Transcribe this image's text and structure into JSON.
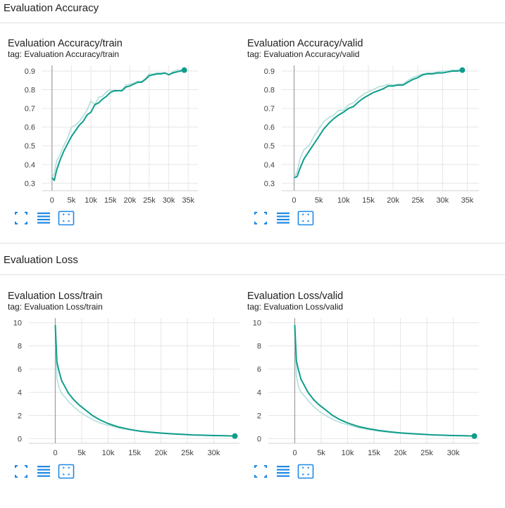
{
  "sections": [
    {
      "title": "Evaluation Accuracy",
      "cards": [
        {
          "title": "Evaluation Accuracy/train",
          "tag": "tag: Evaluation Accuracy/train",
          "chart_data": {
            "type": "line",
            "title": "Evaluation Accuracy/train",
            "xlabel": "",
            "ylabel": "",
            "xlim": [
              -2500,
              37500
            ],
            "ylim": [
              0.26,
              0.93
            ],
            "xticks": [
              0,
              5000,
              10000,
              15000,
              20000,
              25000,
              30000,
              35000
            ],
            "xtick_labels": [
              "0",
              "5k",
              "10k",
              "15k",
              "20k",
              "25k",
              "30k",
              "35k"
            ],
            "yticks": [
              0.3,
              0.4,
              0.5,
              0.6,
              0.7,
              0.8,
              0.9
            ],
            "ytick_labels": [
              "0.3",
              "0.4",
              "0.5",
              "0.6",
              "0.7",
              "0.8",
              "0.9"
            ],
            "grid": true,
            "series": [
              {
                "role": "smoothed",
                "color": "#0f9d8a",
                "x": [
                  0,
                  600,
                  1200,
                  2000,
                  3000,
                  4000,
                  5000,
                  6000,
                  7000,
                  8000,
                  9000,
                  10000,
                  11000,
                  12000,
                  13000,
                  14000,
                  15000,
                  16000,
                  17000,
                  18000,
                  19000,
                  20000,
                  21000,
                  22000,
                  23000,
                  24000,
                  25000,
                  26000,
                  27000,
                  28000,
                  29000,
                  30000,
                  31000,
                  32000,
                  33000,
                  34000
                ],
                "y": [
                  0.33,
                  0.315,
                  0.37,
                  0.42,
                  0.47,
                  0.51,
                  0.55,
                  0.58,
                  0.61,
                  0.63,
                  0.665,
                  0.68,
                  0.72,
                  0.73,
                  0.75,
                  0.765,
                  0.785,
                  0.795,
                  0.795,
                  0.795,
                  0.815,
                  0.82,
                  0.83,
                  0.84,
                  0.84,
                  0.855,
                  0.875,
                  0.88,
                  0.885,
                  0.885,
                  0.89,
                  0.88,
                  0.89,
                  0.895,
                  0.9,
                  0.905
                ]
              },
              {
                "role": "raw",
                "color": "#b2dfdb",
                "x": [
                  0,
                  600,
                  1200,
                  2000,
                  3000,
                  4000,
                  5000,
                  6000,
                  7000,
                  8000,
                  9000,
                  10000,
                  11000,
                  12000,
                  13000,
                  14000,
                  15000,
                  16000,
                  17000,
                  18000,
                  19000,
                  20000,
                  21000,
                  22000,
                  23000,
                  24000,
                  25000,
                  26000,
                  27000,
                  28000,
                  29000,
                  30000,
                  31000,
                  32000,
                  33000,
                  34000
                ],
                "y": [
                  0.33,
                  0.35,
                  0.42,
                  0.45,
                  0.5,
                  0.54,
                  0.6,
                  0.61,
                  0.63,
                  0.66,
                  0.69,
                  0.74,
                  0.72,
                  0.76,
                  0.765,
                  0.79,
                  0.8,
                  0.79,
                  0.795,
                  0.8,
                  0.825,
                  0.83,
                  0.835,
                  0.845,
                  0.845,
                  0.86,
                  0.885,
                  0.885,
                  0.89,
                  0.89,
                  0.89,
                  0.88,
                  0.895,
                  0.905,
                  0.905,
                  0.905
                ]
              }
            ]
          }
        },
        {
          "title": "Evaluation Accuracy/valid",
          "tag": "tag: Evaluation Accuracy/valid",
          "chart_data": {
            "type": "line",
            "title": "Evaluation Accuracy/valid",
            "xlabel": "",
            "ylabel": "",
            "xlim": [
              -2500,
              37500
            ],
            "ylim": [
              0.26,
              0.93
            ],
            "xticks": [
              0,
              5000,
              10000,
              15000,
              20000,
              25000,
              30000,
              35000
            ],
            "xtick_labels": [
              "0",
              "5k",
              "10k",
              "15k",
              "20k",
              "25k",
              "30k",
              "35k"
            ],
            "yticks": [
              0.3,
              0.4,
              0.5,
              0.6,
              0.7,
              0.8,
              0.9
            ],
            "ytick_labels": [
              "0.3",
              "0.4",
              "0.5",
              "0.6",
              "0.7",
              "0.8",
              "0.9"
            ],
            "grid": true,
            "series": [
              {
                "role": "smoothed",
                "color": "#0f9d8a",
                "x": [
                  0,
                  600,
                  1200,
                  2000,
                  3000,
                  4000,
                  5000,
                  6000,
                  7000,
                  8000,
                  9000,
                  10000,
                  11000,
                  12000,
                  13000,
                  14000,
                  15000,
                  16000,
                  17000,
                  18000,
                  19000,
                  20000,
                  21000,
                  22000,
                  23000,
                  24000,
                  25000,
                  26000,
                  27000,
                  28000,
                  29000,
                  30000,
                  31000,
                  32000,
                  33000,
                  34000
                ],
                "y": [
                  0.33,
                  0.335,
                  0.38,
                  0.43,
                  0.47,
                  0.51,
                  0.55,
                  0.59,
                  0.62,
                  0.645,
                  0.665,
                  0.68,
                  0.7,
                  0.71,
                  0.735,
                  0.755,
                  0.77,
                  0.785,
                  0.795,
                  0.805,
                  0.82,
                  0.82,
                  0.825,
                  0.825,
                  0.84,
                  0.855,
                  0.865,
                  0.88,
                  0.885,
                  0.885,
                  0.89,
                  0.89,
                  0.895,
                  0.9,
                  0.9,
                  0.905
                ]
              },
              {
                "role": "raw",
                "color": "#b2dfdb",
                "x": [
                  0,
                  600,
                  1200,
                  2000,
                  3000,
                  4000,
                  5000,
                  6000,
                  7000,
                  8000,
                  9000,
                  10000,
                  11000,
                  12000,
                  13000,
                  14000,
                  15000,
                  16000,
                  17000,
                  18000,
                  19000,
                  20000,
                  21000,
                  22000,
                  23000,
                  24000,
                  25000,
                  26000,
                  27000,
                  28000,
                  29000,
                  30000,
                  31000,
                  32000,
                  33000,
                  34000
                ],
                "y": [
                  0.33,
                  0.36,
                  0.43,
                  0.48,
                  0.5,
                  0.55,
                  0.59,
                  0.63,
                  0.65,
                  0.665,
                  0.69,
                  0.69,
                  0.72,
                  0.73,
                  0.755,
                  0.775,
                  0.79,
                  0.8,
                  0.815,
                  0.82,
                  0.83,
                  0.825,
                  0.83,
                  0.83,
                  0.85,
                  0.865,
                  0.875,
                  0.885,
                  0.89,
                  0.89,
                  0.895,
                  0.9,
                  0.9,
                  0.905,
                  0.905,
                  0.905
                ]
              }
            ]
          }
        }
      ]
    },
    {
      "title": "Evaluation Loss",
      "cards": [
        {
          "title": "Evaluation Loss/train",
          "tag": "tag: Evaluation Loss/train",
          "chart_data": {
            "type": "line",
            "title": "Evaluation Loss/train",
            "xlabel": "",
            "ylabel": "",
            "xlim": [
              -5000,
              35000
            ],
            "ylim": [
              -0.4,
              10.4
            ],
            "xticks": [
              0,
              5000,
              10000,
              15000,
              20000,
              25000,
              30000
            ],
            "xtick_labels": [
              "0",
              "5k",
              "10k",
              "15k",
              "20k",
              "25k",
              "30k"
            ],
            "yticks": [
              0,
              2,
              4,
              6,
              8,
              10
            ],
            "ytick_labels": [
              "0",
              "2",
              "4",
              "6",
              "8",
              "10"
            ],
            "grid": true,
            "series": [
              {
                "role": "smoothed",
                "color": "#0f9d8a",
                "x": [
                  0,
                  300,
                  700,
                  1200,
                  1800,
                  2500,
                  3500,
                  4500,
                  5500,
                  7000,
                  8500,
                  10000,
                  12000,
                  14000,
                  16000,
                  18000,
                  20000,
                  22000,
                  24000,
                  26000,
                  28000,
                  30000,
                  32000,
                  34000
                ],
                "y": [
                  9.8,
                  6.6,
                  5.8,
                  5.0,
                  4.5,
                  3.9,
                  3.35,
                  2.9,
                  2.55,
                  2.0,
                  1.6,
                  1.3,
                  1.0,
                  0.8,
                  0.65,
                  0.55,
                  0.48,
                  0.42,
                  0.37,
                  0.32,
                  0.3,
                  0.27,
                  0.25,
                  0.22
                ]
              },
              {
                "role": "raw",
                "color": "#b2dfdb",
                "x": [
                  0,
                  300,
                  700,
                  1200,
                  1800,
                  2500,
                  3500,
                  4500,
                  5500,
                  7000,
                  8500,
                  10000,
                  12000,
                  14000,
                  16000,
                  18000,
                  20000,
                  22000,
                  24000,
                  26000,
                  28000,
                  30000,
                  32000,
                  34000
                ],
                "y": [
                  9.8,
                  5.2,
                  4.4,
                  3.9,
                  3.6,
                  3.2,
                  2.75,
                  2.35,
                  2.05,
                  1.65,
                  1.35,
                  1.15,
                  0.92,
                  0.75,
                  0.62,
                  0.53,
                  0.46,
                  0.4,
                  0.35,
                  0.31,
                  0.28,
                  0.26,
                  0.24,
                  0.22
                ]
              }
            ]
          }
        },
        {
          "title": "Evaluation Loss/valid",
          "tag": "tag: Evaluation Loss/valid",
          "chart_data": {
            "type": "line",
            "title": "Evaluation Loss/valid",
            "xlabel": "",
            "ylabel": "",
            "xlim": [
              -5000,
              35000
            ],
            "ylim": [
              -0.4,
              10.4
            ],
            "xticks": [
              0,
              5000,
              10000,
              15000,
              20000,
              25000,
              30000
            ],
            "xtick_labels": [
              "0",
              "5k",
              "10k",
              "15k",
              "20k",
              "25k",
              "30k"
            ],
            "yticks": [
              0,
              2,
              4,
              6,
              8,
              10
            ],
            "ytick_labels": [
              "0",
              "2",
              "4",
              "6",
              "8",
              "10"
            ],
            "grid": true,
            "series": [
              {
                "role": "smoothed",
                "color": "#0f9d8a",
                "x": [
                  0,
                  300,
                  700,
                  1200,
                  1800,
                  2500,
                  3500,
                  4500,
                  5500,
                  7000,
                  8500,
                  10000,
                  12000,
                  14000,
                  16000,
                  18000,
                  20000,
                  22000,
                  24000,
                  26000,
                  28000,
                  30000,
                  32000,
                  34000
                ],
                "y": [
                  9.8,
                  6.7,
                  5.9,
                  5.1,
                  4.6,
                  4.0,
                  3.4,
                  2.95,
                  2.6,
                  2.05,
                  1.65,
                  1.35,
                  1.05,
                  0.85,
                  0.7,
                  0.58,
                  0.5,
                  0.44,
                  0.38,
                  0.33,
                  0.3,
                  0.27,
                  0.25,
                  0.22
                ]
              },
              {
                "role": "raw",
                "color": "#b2dfdb",
                "x": [
                  0,
                  300,
                  700,
                  1200,
                  1800,
                  2500,
                  3500,
                  4500,
                  5500,
                  7000,
                  8500,
                  10000,
                  12000,
                  14000,
                  16000,
                  18000,
                  20000,
                  22000,
                  24000,
                  26000,
                  28000,
                  30000,
                  32000,
                  34000
                ],
                "y": [
                  9.8,
                  5.4,
                  4.5,
                  4.0,
                  3.7,
                  3.3,
                  2.8,
                  2.4,
                  2.1,
                  1.7,
                  1.4,
                  1.2,
                  0.95,
                  0.78,
                  0.64,
                  0.54,
                  0.47,
                  0.41,
                  0.36,
                  0.32,
                  0.29,
                  0.26,
                  0.24,
                  0.22
                ]
              }
            ]
          }
        }
      ]
    }
  ],
  "toolbar": {
    "buttons": [
      {
        "icon": "fullscreen-icon",
        "color": "#1e88e5"
      },
      {
        "icon": "toggle-log-scale-icon",
        "color": "#1e88e5"
      },
      {
        "icon": "fit-domain-icon",
        "color": "#1e88e5"
      }
    ]
  }
}
